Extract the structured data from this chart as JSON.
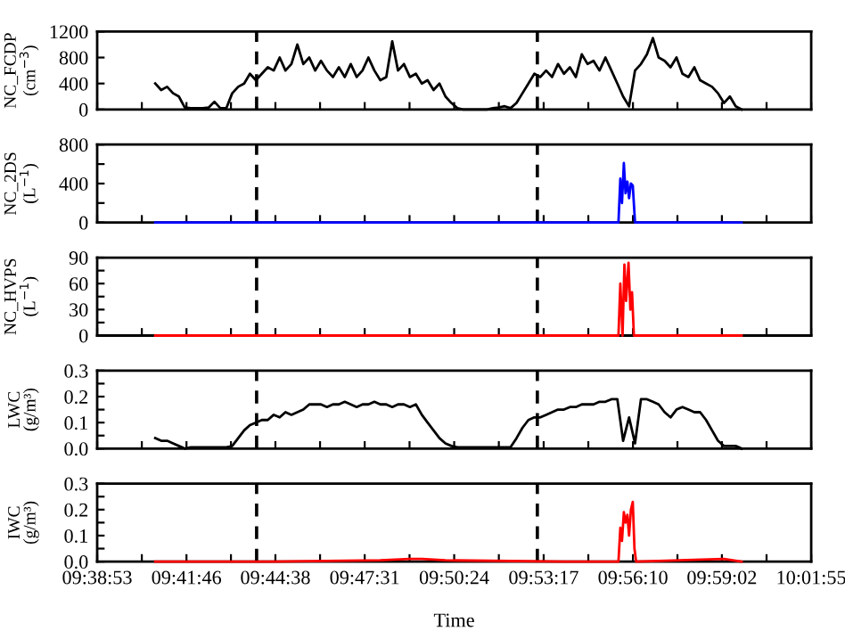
{
  "chart_data": [
    {
      "type": "line",
      "ylabel": "NC_FCDP (cm$^{−3}$)",
      "tick_labels": "y",
      "xlim": [
        9.6481,
        10.0319
      ],
      "ylim": [
        0,
        1200
      ],
      "yticks": [
        0,
        400,
        800,
        1200
      ],
      "xticks": [
        {
          "value": 9.6481,
          "label": null
        },
        {
          "value": 9.6721,
          "label": null
        },
        {
          "value": 9.6961,
          "label": null
        },
        {
          "value": 9.72,
          "label": null
        },
        {
          "value": 9.7439,
          "label": null
        },
        {
          "value": 9.7679,
          "label": null
        },
        {
          "value": 9.7919,
          "label": null
        },
        {
          "value": 9.816,
          "label": null
        },
        {
          "value": 9.84,
          "label": null
        },
        {
          "value": 9.864,
          "label": null
        },
        {
          "value": 9.8881,
          "label": null
        },
        {
          "value": 9.9121,
          "label": null
        },
        {
          "value": 9.9361,
          "label": null
        },
        {
          "value": 9.96,
          "label": null
        },
        {
          "value": 9.9839,
          "label": null
        },
        {
          "value": 10.0079,
          "label": null
        },
        {
          "value": 10.0319,
          "label": null
        }
      ],
      "x": [
        9.6793,
        9.6825,
        9.6857,
        9.6889,
        9.692,
        9.6952,
        9.6984,
        9.7016,
        9.7048,
        9.708,
        9.7111,
        9.7143,
        9.7175,
        9.7207,
        9.7239,
        9.7271,
        9.7302,
        9.7334,
        9.7366,
        9.7398,
        9.743,
        9.7462,
        9.7493,
        9.7525,
        9.7557,
        9.7589,
        9.7621,
        9.7653,
        9.7684,
        9.7716,
        9.7748,
        9.778,
        9.7812,
        9.7844,
        9.7876,
        9.7907,
        9.7939,
        9.7971,
        9.8003,
        9.8035,
        9.8067,
        9.8098,
        9.813,
        9.8162,
        9.8194,
        9.8226,
        9.8257,
        9.8289,
        9.8321,
        9.8353,
        9.8385,
        9.8417,
        9.8448,
        9.848,
        9.8512,
        9.8544,
        9.8576,
        9.8608,
        9.864,
        9.8671,
        9.8703,
        9.8735,
        9.8767,
        9.8799,
        9.8831,
        9.8863,
        9.8894,
        9.8926,
        9.8958,
        9.899,
        9.9022,
        9.9054,
        9.9086,
        9.9117,
        9.9149,
        9.9181,
        9.9213,
        9.9245,
        9.9277,
        9.9308,
        9.934,
        9.9372,
        9.9404,
        9.9436,
        9.9468,
        9.9499,
        9.9531,
        9.9563,
        9.9595,
        9.9627,
        9.9659,
        9.9691,
        9.9722,
        9.9754,
        9.9786,
        9.9818,
        9.985,
        9.9882,
        9.9913,
        9.9945
      ],
      "series": [
        {
          "color": "#000000",
          "values": [
            400,
            300,
            350,
            250,
            200,
            30,
            20,
            20,
            20,
            30,
            120,
            20,
            20,
            250,
            350,
            400,
            550,
            450,
            550,
            650,
            600,
            800,
            600,
            700,
            1000,
            700,
            800,
            600,
            750,
            600,
            500,
            650,
            500,
            700,
            500,
            600,
            800,
            600,
            450,
            500,
            1050,
            600,
            700,
            500,
            550,
            400,
            450,
            300,
            400,
            200,
            100,
            20,
            0,
            0,
            0,
            0,
            0,
            20,
            30,
            50,
            20,
            100,
            250,
            400,
            550,
            500,
            600,
            500,
            700,
            550,
            650,
            500,
            850,
            700,
            750,
            600,
            800,
            600,
            400,
            200,
            50,
            600,
            700,
            850,
            1100,
            800,
            750,
            650,
            800,
            550,
            500,
            650,
            450,
            400,
            350,
            250,
            100,
            200,
            50,
            0
          ]
        }
      ],
      "ref_lines": [
        {
          "axis": "x",
          "value": 9.7338,
          "color": "#000000",
          "line_style": "dashed"
        },
        {
          "axis": "x",
          "value": 9.8847,
          "color": "#000000",
          "line_style": "dashed"
        }
      ]
    },
    {
      "type": "line",
      "ylabel": "NC_2DS (L$^{−1}$)",
      "tick_labels": "y",
      "xlim": [
        9.6481,
        10.0319
      ],
      "ylim": [
        0,
        800
      ],
      "yticks": [
        0,
        {
          "value": 200,
          "label": null
        },
        400,
        {
          "value": 600,
          "label": null
        },
        800
      ],
      "xticks": [
        {
          "value": 9.6481,
          "label": null
        },
        {
          "value": 9.6721,
          "label": null
        },
        {
          "value": 9.6961,
          "label": null
        },
        {
          "value": 9.72,
          "label": null
        },
        {
          "value": 9.7439,
          "label": null
        },
        {
          "value": 9.7679,
          "label": null
        },
        {
          "value": 9.7919,
          "label": null
        },
        {
          "value": 9.816,
          "label": null
        },
        {
          "value": 9.84,
          "label": null
        },
        {
          "value": 9.864,
          "label": null
        },
        {
          "value": 9.8881,
          "label": null
        },
        {
          "value": 9.9121,
          "label": null
        },
        {
          "value": 9.9361,
          "label": null
        },
        {
          "value": 9.96,
          "label": null
        },
        {
          "value": 9.9839,
          "label": null
        },
        {
          "value": 10.0079,
          "label": null
        },
        {
          "value": 10.0319,
          "label": null
        }
      ],
      "series": [
        {
          "color": "#0000ff",
          "x": [
            9.6793,
            9.9245,
            9.9283,
            9.9293,
            9.9302,
            9.9312,
            9.9321,
            9.9331,
            9.934,
            9.935,
            9.936,
            9.9372,
            9.9945
          ],
          "values": [
            0,
            0,
            0,
            450,
            200,
            610,
            300,
            420,
            250,
            400,
            380,
            0,
            0
          ]
        }
      ],
      "ref_lines": [
        {
          "axis": "x",
          "value": 9.7338,
          "color": "#000000",
          "line_style": "dashed"
        },
        {
          "axis": "x",
          "value": 9.8847,
          "color": "#000000",
          "line_style": "dashed"
        }
      ]
    },
    {
      "type": "line",
      "ylabel": "NC_HVPS (L$^{−1}$)",
      "tick_labels": "y",
      "xlim": [
        9.6481,
        10.0319
      ],
      "ylim": [
        0,
        90
      ],
      "yticks": [
        0,
        {
          "value": 15,
          "label": null
        },
        30,
        {
          "value": 45,
          "label": null
        },
        60,
        {
          "value": 75,
          "label": null
        },
        90
      ],
      "xticks": [
        {
          "value": 9.6481,
          "label": null
        },
        {
          "value": 9.6721,
          "label": null
        },
        {
          "value": 9.6961,
          "label": null
        },
        {
          "value": 9.72,
          "label": null
        },
        {
          "value": 9.7439,
          "label": null
        },
        {
          "value": 9.7679,
          "label": null
        },
        {
          "value": 9.7919,
          "label": null
        },
        {
          "value": 9.816,
          "label": null
        },
        {
          "value": 9.84,
          "label": null
        },
        {
          "value": 9.864,
          "label": null
        },
        {
          "value": 9.8881,
          "label": null
        },
        {
          "value": 9.9121,
          "label": null
        },
        {
          "value": 9.9361,
          "label": null
        },
        {
          "value": 9.96,
          "label": null
        },
        {
          "value": 9.9839,
          "label": null
        },
        {
          "value": 10.0079,
          "label": null
        },
        {
          "value": 10.0319,
          "label": null
        }
      ],
      "series": [
        {
          "color": "#ff0000",
          "x": [
            9.6793,
            9.9245,
            9.9283,
            9.9293,
            9.9305,
            9.9315,
            9.9324,
            9.9337,
            9.9347,
            9.9356,
            9.9366,
            9.9945
          ],
          "values": [
            0,
            0,
            0,
            60,
            0,
            82,
            40,
            84,
            30,
            50,
            0,
            0
          ]
        }
      ],
      "ref_lines": [
        {
          "axis": "x",
          "value": 9.7338,
          "color": "#000000",
          "line_style": "dashed"
        },
        {
          "axis": "x",
          "value": 9.8847,
          "color": "#000000",
          "line_style": "dashed"
        }
      ]
    },
    {
      "type": "line",
      "ylabel": "LWC (g/m³)",
      "tick_labels": "y",
      "xlim": [
        9.6481,
        10.0319
      ],
      "ylim": [
        0,
        0.3
      ],
      "yticks": [
        {
          "value": 0,
          "label": "0.0"
        },
        {
          "value": 0.05,
          "label": null
        },
        0.1,
        {
          "value": 0.15,
          "label": null
        },
        0.2,
        {
          "value": 0.25,
          "label": null
        },
        0.3
      ],
      "xticks": [
        {
          "value": 9.6481,
          "label": null
        },
        {
          "value": 9.6721,
          "label": null
        },
        {
          "value": 9.6961,
          "label": null
        },
        {
          "value": 9.72,
          "label": null
        },
        {
          "value": 9.7439,
          "label": null
        },
        {
          "value": 9.7679,
          "label": null
        },
        {
          "value": 9.7919,
          "label": null
        },
        {
          "value": 9.816,
          "label": null
        },
        {
          "value": 9.84,
          "label": null
        },
        {
          "value": 9.864,
          "label": null
        },
        {
          "value": 9.8881,
          "label": null
        },
        {
          "value": 9.9121,
          "label": null
        },
        {
          "value": 9.9361,
          "label": null
        },
        {
          "value": 9.96,
          "label": null
        },
        {
          "value": 9.9839,
          "label": null
        },
        {
          "value": 10.0079,
          "label": null
        },
        {
          "value": 10.0319,
          "label": null
        }
      ],
      "x": [
        9.6793,
        9.6825,
        9.6857,
        9.6889,
        9.692,
        9.6952,
        9.6984,
        9.7016,
        9.7048,
        9.708,
        9.7111,
        9.7143,
        9.7175,
        9.7207,
        9.7239,
        9.7271,
        9.7302,
        9.7334,
        9.7366,
        9.7398,
        9.743,
        9.7462,
        9.7493,
        9.7525,
        9.7557,
        9.7589,
        9.7621,
        9.7653,
        9.7684,
        9.7716,
        9.7748,
        9.778,
        9.7812,
        9.7844,
        9.7876,
        9.7907,
        9.7939,
        9.7971,
        9.8003,
        9.8035,
        9.8067,
        9.8098,
        9.813,
        9.8162,
        9.8194,
        9.8226,
        9.8257,
        9.8289,
        9.8321,
        9.8353,
        9.8385,
        9.8417,
        9.8448,
        9.848,
        9.8512,
        9.8544,
        9.8576,
        9.8608,
        9.864,
        9.8671,
        9.8703,
        9.8735,
        9.8767,
        9.8799,
        9.8831,
        9.8863,
        9.8894,
        9.8926,
        9.8958,
        9.899,
        9.9022,
        9.9054,
        9.9086,
        9.9117,
        9.9149,
        9.9181,
        9.9213,
        9.9245,
        9.9277,
        9.9308,
        9.934,
        9.9372,
        9.9404,
        9.9436,
        9.9468,
        9.9499,
        9.9531,
        9.9563,
        9.9595,
        9.9627,
        9.9659,
        9.9691,
        9.9722,
        9.9754,
        9.9786,
        9.9818,
        9.985,
        9.9882,
        9.9913,
        9.9945
      ],
      "series": [
        {
          "color": "#000000",
          "values": [
            0.04,
            0.03,
            0.03,
            0.02,
            0.01,
            0,
            0.005,
            0.005,
            0.005,
            0.005,
            0.005,
            0.005,
            0.005,
            0.01,
            0.04,
            0.07,
            0.09,
            0.1,
            0.11,
            0.11,
            0.13,
            0.12,
            0.14,
            0.13,
            0.14,
            0.15,
            0.17,
            0.17,
            0.17,
            0.16,
            0.17,
            0.17,
            0.18,
            0.17,
            0.16,
            0.17,
            0.17,
            0.18,
            0.17,
            0.17,
            0.16,
            0.17,
            0.17,
            0.16,
            0.17,
            0.13,
            0.1,
            0.07,
            0.04,
            0.02,
            0.01,
            0.005,
            0.005,
            0.005,
            0.005,
            0.005,
            0.005,
            0.005,
            0.005,
            0.005,
            0.005,
            0.04,
            0.08,
            0.11,
            0.12,
            0.12,
            0.13,
            0.14,
            0.15,
            0.15,
            0.16,
            0.16,
            0.17,
            0.17,
            0.17,
            0.18,
            0.18,
            0.19,
            0.19,
            0.03,
            0.12,
            0.02,
            0.19,
            0.19,
            0.18,
            0.17,
            0.14,
            0.12,
            0.15,
            0.16,
            0.15,
            0.14,
            0.14,
            0.11,
            0.07,
            0.03,
            0.01,
            0.01,
            0.01,
            0
          ]
        }
      ],
      "ref_lines": [
        {
          "axis": "x",
          "value": 9.7338,
          "color": "#000000",
          "line_style": "dashed"
        },
        {
          "axis": "x",
          "value": 9.8847,
          "color": "#000000",
          "line_style": "dashed"
        }
      ]
    },
    {
      "type": "line",
      "ylabel": "IWC (g/m³)",
      "xlabel": "Time",
      "xlim": [
        9.6481,
        10.0319
      ],
      "ylim": [
        0,
        0.3
      ],
      "yticks": [
        {
          "value": 0,
          "label": "0.0"
        },
        {
          "value": 0.05,
          "label": null
        },
        0.1,
        {
          "value": 0.15,
          "label": null
        },
        0.2,
        {
          "value": 0.25,
          "label": null
        },
        0.3
      ],
      "xticks": [
        {
          "value": 9.6481,
          "label": "09:38:53"
        },
        {
          "value": 9.6721,
          "label": null
        },
        {
          "value": 9.6961,
          "label": "09:41:46"
        },
        {
          "value": 9.72,
          "label": null
        },
        {
          "value": 9.7439,
          "label": "09:44:38"
        },
        {
          "value": 9.7679,
          "label": null
        },
        {
          "value": 9.7919,
          "label": "09:47:31"
        },
        {
          "value": 9.816,
          "label": null
        },
        {
          "value": 9.84,
          "label": "09:50:24"
        },
        {
          "value": 9.864,
          "label": null
        },
        {
          "value": 9.8881,
          "label": "09:53:17"
        },
        {
          "value": 9.9121,
          "label": null
        },
        {
          "value": 9.9361,
          "label": "09:56:10"
        },
        {
          "value": 9.96,
          "label": null
        },
        {
          "value": 9.9839,
          "label": "09:59:02"
        },
        {
          "value": 10.0079,
          "label": null
        },
        {
          "value": 10.0319,
          "label": "10:01:55"
        }
      ],
      "series": [
        {
          "color": "#ff0000",
          "x": [
            9.6793,
            9.743,
            9.8003,
            9.8162,
            9.8226,
            9.8353,
            9.899,
            9.9245,
            9.9283,
            9.9293,
            9.9302,
            9.9312,
            9.9321,
            9.9331,
            9.934,
            9.935,
            9.936,
            9.9369,
            9.9378,
            9.985,
            9.9945
          ],
          "values": [
            0,
            0,
            0.005,
            0.01,
            0.01,
            0.005,
            0,
            0,
            0,
            0.13,
            0.08,
            0.19,
            0.15,
            0.18,
            0.1,
            0.2,
            0.23,
            0.05,
            0,
            0.01,
            0
          ]
        }
      ],
      "ref_lines": [
        {
          "axis": "x",
          "value": 9.7338,
          "color": "#000000",
          "line_style": "dashed"
        },
        {
          "axis": "x",
          "value": 9.8847,
          "color": "#000000",
          "line_style": "dashed"
        }
      ]
    }
  ]
}
